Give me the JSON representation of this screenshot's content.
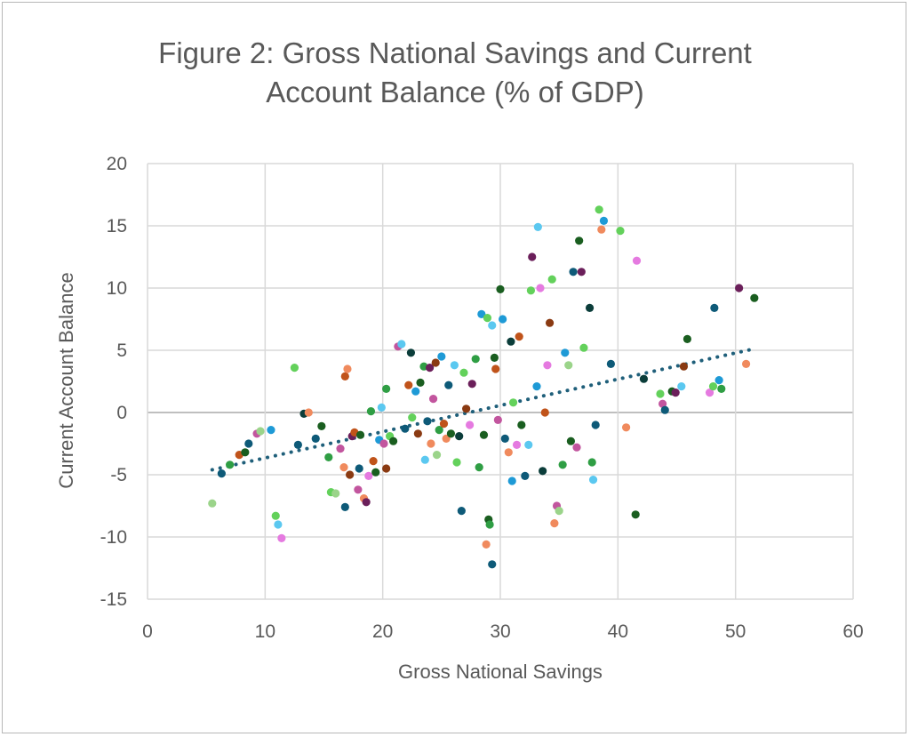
{
  "chart_data": {
    "type": "scatter",
    "title_lines": [
      "Figure 2: Gross National Savings and Current",
      "Account Balance (% of GDP)"
    ],
    "xlabel": "Gross National Savings",
    "ylabel": "Current Account Balance",
    "xlim": [
      0,
      60
    ],
    "ylim": [
      -15,
      20
    ],
    "x_ticks": [
      0,
      10,
      20,
      30,
      40,
      50,
      60
    ],
    "y_ticks": [
      20,
      15,
      10,
      5,
      0,
      -5,
      -10,
      -15
    ],
    "x_tick_labels": [
      "0",
      "10",
      "20",
      "30",
      "40",
      "50",
      "60"
    ],
    "y_tick_labels": [
      "20",
      "15",
      "10",
      "5",
      "0",
      "-5",
      "-10",
      "-15"
    ],
    "grid": true,
    "trendline": {
      "style": "dotted",
      "color": "#1f5f7a",
      "x_start": 5.5,
      "x_end": 51.5,
      "y_start": -4.6,
      "y_end": 5.1
    },
    "palette": [
      "#0e5a78",
      "#1e9ad6",
      "#5bc8f0",
      "#2f9e44",
      "#1a5e20",
      "#63d15b",
      "#c2559e",
      "#e57ae0",
      "#6b1f5a",
      "#c0531a",
      "#f08a5d",
      "#8a3a12",
      "#9bd48a",
      "#0b3d3a"
    ],
    "points": [
      [
        5.5,
        -7.3,
        12
      ],
      [
        6.3,
        -4.9,
        0
      ],
      [
        7.0,
        -4.2,
        3
      ],
      [
        7.8,
        -3.4,
        9
      ],
      [
        8.3,
        -3.2,
        4
      ],
      [
        8.6,
        -2.5,
        0
      ],
      [
        9.3,
        -1.7,
        6
      ],
      [
        9.6,
        -1.5,
        12
      ],
      [
        10.5,
        -1.4,
        1
      ],
      [
        10.9,
        -8.3,
        5
      ],
      [
        11.1,
        -9.0,
        2
      ],
      [
        11.4,
        -10.1,
        7
      ],
      [
        12.5,
        3.6,
        5
      ],
      [
        12.8,
        -2.6,
        0
      ],
      [
        13.3,
        -0.1,
        13
      ],
      [
        13.7,
        0.0,
        10
      ],
      [
        14.3,
        -2.1,
        0
      ],
      [
        14.8,
        -1.1,
        4
      ],
      [
        15.4,
        -3.6,
        3
      ],
      [
        15.6,
        -6.4,
        5
      ],
      [
        16.0,
        -6.5,
        12
      ],
      [
        16.4,
        -2.9,
        6
      ],
      [
        16.7,
        -4.4,
        10
      ],
      [
        16.8,
        -7.6,
        0
      ],
      [
        16.8,
        2.9,
        9
      ],
      [
        17.0,
        3.5,
        10
      ],
      [
        17.2,
        -5.0,
        11
      ],
      [
        17.4,
        -1.9,
        8
      ],
      [
        17.6,
        -1.6,
        9
      ],
      [
        17.9,
        -6.2,
        6
      ],
      [
        18.0,
        -4.5,
        0
      ],
      [
        18.1,
        -1.8,
        4
      ],
      [
        18.4,
        -6.9,
        10
      ],
      [
        18.6,
        -7.2,
        8
      ],
      [
        18.8,
        -5.1,
        7
      ],
      [
        19.0,
        0.1,
        3
      ],
      [
        19.2,
        -3.9,
        9
      ],
      [
        19.4,
        -4.8,
        4
      ],
      [
        19.7,
        -2.2,
        1
      ],
      [
        19.9,
        0.4,
        2
      ],
      [
        20.1,
        -2.5,
        6
      ],
      [
        20.3,
        -4.5,
        11
      ],
      [
        20.3,
        1.9,
        3
      ],
      [
        20.6,
        -1.9,
        5
      ],
      [
        20.9,
        -2.3,
        4
      ],
      [
        21.3,
        5.3,
        6
      ],
      [
        21.6,
        5.5,
        2
      ],
      [
        21.9,
        -1.3,
        0
      ],
      [
        22.2,
        2.2,
        9
      ],
      [
        22.4,
        4.8,
        13
      ],
      [
        22.5,
        -0.4,
        5
      ],
      [
        22.8,
        1.7,
        1
      ],
      [
        23.0,
        -1.7,
        11
      ],
      [
        23.2,
        2.4,
        4
      ],
      [
        23.5,
        3.7,
        3
      ],
      [
        23.6,
        -3.8,
        2
      ],
      [
        23.8,
        -0.7,
        0
      ],
      [
        24.0,
        3.6,
        8
      ],
      [
        24.1,
        -2.5,
        10
      ],
      [
        24.3,
        1.1,
        6
      ],
      [
        24.5,
        4.0,
        11
      ],
      [
        24.6,
        -3.4,
        12
      ],
      [
        24.8,
        -1.4,
        3
      ],
      [
        25.0,
        4.5,
        1
      ],
      [
        25.2,
        -0.9,
        9
      ],
      [
        25.4,
        -2.1,
        10
      ],
      [
        25.6,
        2.2,
        0
      ],
      [
        25.8,
        -1.7,
        4
      ],
      [
        26.1,
        3.8,
        2
      ],
      [
        26.3,
        -4.0,
        5
      ],
      [
        26.5,
        -1.9,
        13
      ],
      [
        26.7,
        -7.9,
        0
      ],
      [
        26.9,
        3.2,
        5
      ],
      [
        27.1,
        0.3,
        11
      ],
      [
        27.4,
        -1.0,
        7
      ],
      [
        27.6,
        2.3,
        8
      ],
      [
        27.9,
        4.3,
        3
      ],
      [
        28.2,
        -4.4,
        3
      ],
      [
        28.4,
        7.9,
        1
      ],
      [
        28.6,
        -1.8,
        4
      ],
      [
        28.8,
        -10.6,
        10
      ],
      [
        28.9,
        7.6,
        5
      ],
      [
        29.0,
        -8.6,
        4
      ],
      [
        29.1,
        -9.0,
        3
      ],
      [
        29.3,
        -12.2,
        0
      ],
      [
        29.3,
        7.0,
        2
      ],
      [
        29.5,
        4.4,
        4
      ],
      [
        29.6,
        3.5,
        9
      ],
      [
        29.8,
        -0.6,
        6
      ],
      [
        30.0,
        9.9,
        4
      ],
      [
        30.2,
        7.5,
        1
      ],
      [
        30.4,
        -2.1,
        0
      ],
      [
        30.7,
        -3.2,
        10
      ],
      [
        30.9,
        5.7,
        13
      ],
      [
        31.0,
        -5.5,
        1
      ],
      [
        31.1,
        0.8,
        5
      ],
      [
        31.4,
        -2.6,
        7
      ],
      [
        31.6,
        6.1,
        9
      ],
      [
        31.8,
        -1.0,
        4
      ],
      [
        32.1,
        -5.1,
        0
      ],
      [
        32.4,
        -2.6,
        2
      ],
      [
        32.6,
        9.8,
        5
      ],
      [
        32.7,
        12.5,
        8
      ],
      [
        33.1,
        2.1,
        1
      ],
      [
        33.2,
        14.9,
        2
      ],
      [
        33.4,
        10.0,
        7
      ],
      [
        33.6,
        -4.7,
        13
      ],
      [
        33.8,
        0.0,
        9
      ],
      [
        34.0,
        3.8,
        7
      ],
      [
        34.2,
        7.2,
        11
      ],
      [
        34.4,
        10.7,
        5
      ],
      [
        34.6,
        -8.9,
        10
      ],
      [
        34.8,
        -7.5,
        6
      ],
      [
        35.0,
        -7.9,
        12
      ],
      [
        35.3,
        -4.2,
        3
      ],
      [
        35.5,
        4.8,
        1
      ],
      [
        35.8,
        3.8,
        12
      ],
      [
        36.0,
        -2.3,
        4
      ],
      [
        36.2,
        11.3,
        0
      ],
      [
        36.5,
        -2.8,
        6
      ],
      [
        36.7,
        13.8,
        4
      ],
      [
        36.9,
        11.3,
        8
      ],
      [
        37.1,
        5.2,
        5
      ],
      [
        37.6,
        8.4,
        13
      ],
      [
        37.8,
        -4.0,
        3
      ],
      [
        37.9,
        -5.4,
        2
      ],
      [
        38.1,
        -1.0,
        0
      ],
      [
        38.4,
        16.3,
        5
      ],
      [
        38.6,
        14.7,
        10
      ],
      [
        38.8,
        15.4,
        1
      ],
      [
        39.4,
        3.9,
        0
      ],
      [
        40.2,
        14.6,
        5
      ],
      [
        40.7,
        -1.2,
        10
      ],
      [
        41.5,
        -8.2,
        4
      ],
      [
        41.6,
        12.2,
        7
      ],
      [
        42.2,
        2.7,
        13
      ],
      [
        43.6,
        1.5,
        5
      ],
      [
        43.8,
        0.7,
        6
      ],
      [
        44.0,
        0.2,
        0
      ],
      [
        44.6,
        1.7,
        4
      ],
      [
        44.9,
        1.6,
        8
      ],
      [
        45.4,
        2.1,
        2
      ],
      [
        45.6,
        3.7,
        11
      ],
      [
        45.9,
        5.9,
        4
      ],
      [
        47.8,
        1.6,
        7
      ],
      [
        48.1,
        2.1,
        5
      ],
      [
        48.2,
        8.4,
        0
      ],
      [
        48.6,
        2.6,
        1
      ],
      [
        48.8,
        1.9,
        3
      ],
      [
        50.3,
        10.0,
        8
      ],
      [
        50.9,
        3.9,
        10
      ],
      [
        51.6,
        9.2,
        4
      ]
    ]
  }
}
